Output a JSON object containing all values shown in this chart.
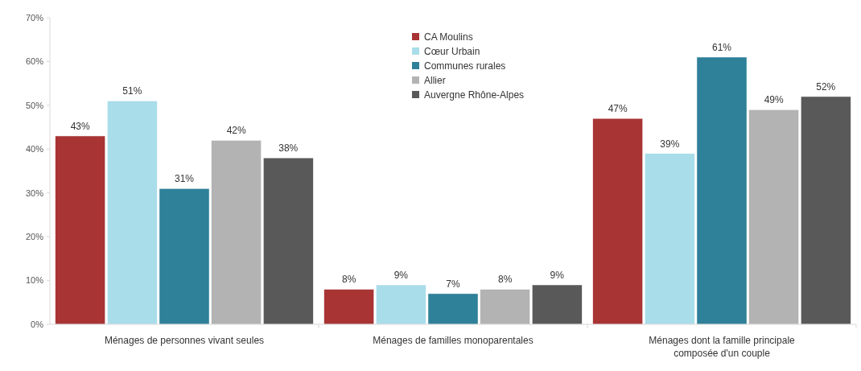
{
  "chart_data": {
    "type": "bar",
    "categories": [
      "Ménages de personnes vivant seules",
      "Ménages de familles monoparentales",
      "Ménages dont la famille principale composée d'un couple"
    ],
    "series": [
      {
        "name": "CA Moulins",
        "color": "#a83434",
        "values": [
          43,
          8,
          47
        ],
        "value_labels": [
          "43%",
          "8%",
          "47%"
        ]
      },
      {
        "name": "Cœur Urbain",
        "color": "#a9dde9",
        "values": [
          51,
          9,
          39
        ],
        "value_labels": [
          "51%",
          "9%",
          "39%"
        ]
      },
      {
        "name": "Communes rurales",
        "color": "#2f8099",
        "values": [
          31,
          7,
          61
        ],
        "value_labels": [
          "31%",
          "7%",
          "61%"
        ]
      },
      {
        "name": "Allier",
        "color": "#b3b3b3",
        "values": [
          42,
          8,
          49
        ],
        "value_labels": [
          "42%",
          "8%",
          "49%"
        ]
      },
      {
        "name": "Auvergne Rhône-Alpes",
        "color": "#595959",
        "values": [
          38,
          9,
          52
        ],
        "value_labels": [
          "38%",
          "9%",
          "52%"
        ]
      }
    ],
    "ylim": [
      0,
      70
    ],
    "yticks": [
      {
        "value": 0,
        "label": "0%"
      },
      {
        "value": 10,
        "label": "10%"
      },
      {
        "value": 20,
        "label": "20%"
      },
      {
        "value": 30,
        "label": "30%"
      },
      {
        "value": 40,
        "label": "40%"
      },
      {
        "value": 50,
        "label": "50%"
      },
      {
        "value": 60,
        "label": "60%"
      },
      {
        "value": 70,
        "label": "70%"
      }
    ],
    "legend": "top"
  }
}
